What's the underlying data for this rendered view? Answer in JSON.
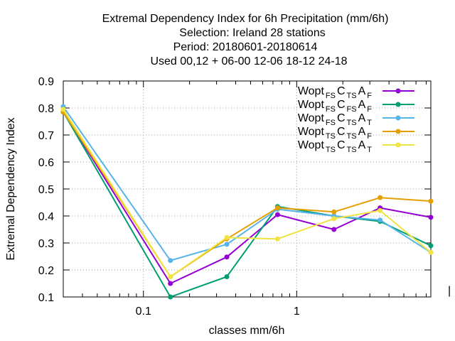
{
  "chart_data": {
    "type": "line",
    "title_lines": [
      "Extremal Dependency Index  for 6h Precipitation (mm/6h)",
      "Selection: Ireland     28 stations",
      "Period: 20180601-20180614",
      "Used  00,12  + 06-00 12-06 18-12 24-18"
    ],
    "xlabel": "classes mm/6h",
    "ylabel": "Extremal Dependency Index",
    "x_scale": "log",
    "xlim": [
      0.03,
      7.5
    ],
    "ylim": [
      0.1,
      0.9
    ],
    "x_ticks": [
      {
        "value": 0.1,
        "label": "0.1"
      },
      {
        "value": 1,
        "label": "1"
      }
    ],
    "y_ticks": [
      {
        "value": 0.1,
        "label": "0.1"
      },
      {
        "value": 0.2,
        "label": "0.2"
      },
      {
        "value": 0.3,
        "label": "0.3"
      },
      {
        "value": 0.4,
        "label": "0.4"
      },
      {
        "value": 0.5,
        "label": "0.5"
      },
      {
        "value": 0.6,
        "label": "0.6"
      },
      {
        "value": 0.7,
        "label": "0.7"
      },
      {
        "value": 0.8,
        "label": "0.8"
      },
      {
        "value": 0.9,
        "label": "0.9"
      }
    ],
    "grid": true,
    "legend_position": "top-right",
    "x": [
      0.03,
      0.15,
      0.35,
      0.75,
      1.75,
      3.5,
      7.5
    ],
    "series": [
      {
        "name_parts": [
          "Wopt",
          "FS",
          "C",
          "TS",
          "A",
          "F"
        ],
        "color": "#9400d3",
        "values": [
          0.785,
          0.15,
          0.248,
          0.405,
          0.35,
          0.43,
          0.395
        ]
      },
      {
        "name_parts": [
          "Wopt",
          "FS",
          "C",
          "FS",
          "A",
          "F"
        ],
        "color": "#009e73",
        "values": [
          0.785,
          0.1,
          0.175,
          0.435,
          0.4,
          0.38,
          0.29
        ]
      },
      {
        "name_parts": [
          "Wopt",
          "FS",
          "C",
          "TS",
          "A",
          "T"
        ],
        "color": "#56b4e9",
        "values": [
          0.805,
          0.235,
          0.295,
          0.425,
          0.4,
          0.385,
          0.265
        ]
      },
      {
        "name_parts": [
          "Wopt",
          "TS",
          "C",
          "TS",
          "A",
          "F"
        ],
        "color": "#e69f00",
        "values": [
          0.785,
          0.175,
          0.315,
          0.43,
          0.415,
          0.468,
          0.455
        ]
      },
      {
        "name_parts": [
          "Wopt",
          "TS",
          "C",
          "TS",
          "A",
          "T"
        ],
        "color": "#f0e442",
        "values": [
          0.795,
          0.175,
          0.32,
          0.315,
          0.39,
          0.42,
          0.265
        ]
      }
    ]
  }
}
